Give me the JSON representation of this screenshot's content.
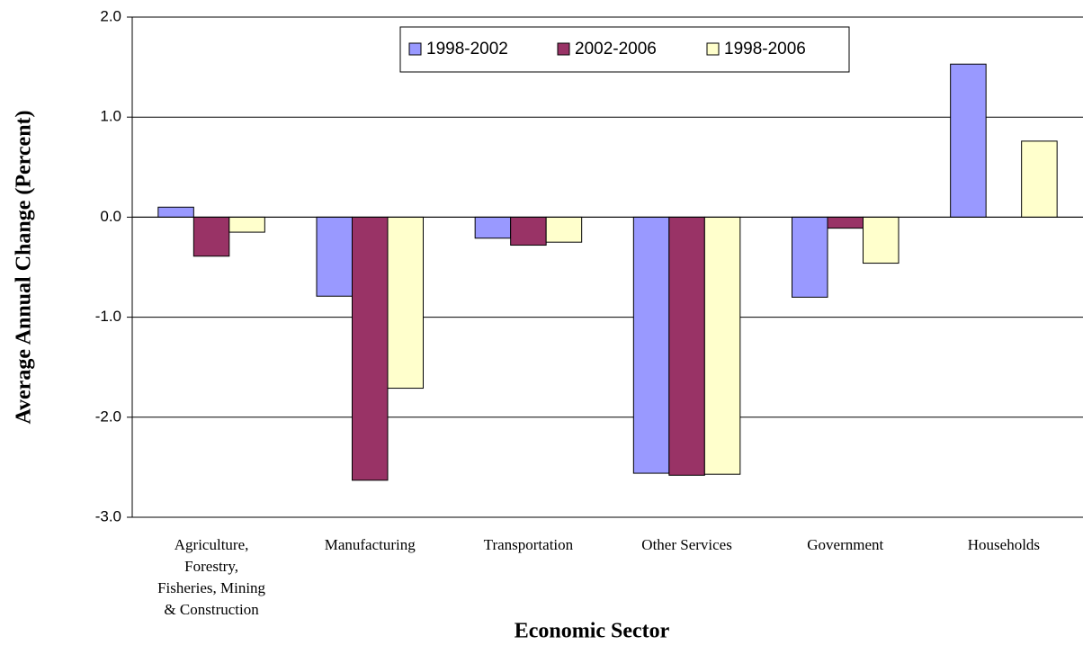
{
  "chart_data": {
    "type": "bar",
    "x_label": "Economic Sector",
    "y_label": "Average Annual Change (Percent)",
    "categories": [
      "Agriculture, Forestry, Fisheries, Mining & Construction",
      "Manufacturing",
      "Transportation",
      "Other Services",
      "Government",
      "Households"
    ],
    "series": [
      {
        "name": "1998-2002",
        "color": "#9999ff",
        "values": [
          0.1,
          -0.79,
          -0.21,
          -2.56,
          -0.8,
          1.53
        ]
      },
      {
        "name": "2002-2006",
        "color": "#993366",
        "values": [
          -0.39,
          -2.63,
          -0.28,
          -2.58,
          -0.11,
          0
        ]
      },
      {
        "name": "1998-2006",
        "color": "#ffffcc",
        "values": [
          -0.15,
          -1.71,
          -0.25,
          -2.57,
          -0.46,
          0.76
        ]
      }
    ],
    "ylim": [
      -3,
      2
    ],
    "yticks": [
      {
        "value": -3,
        "label": "-3.0"
      },
      {
        "value": -2,
        "label": "-2.0"
      },
      {
        "value": -1,
        "label": "-1.0"
      },
      {
        "value": 0,
        "label": "0.0"
      },
      {
        "value": 1,
        "label": "1.0"
      },
      {
        "value": 2,
        "label": "2.0"
      }
    ],
    "grid": true,
    "legend": "top"
  }
}
